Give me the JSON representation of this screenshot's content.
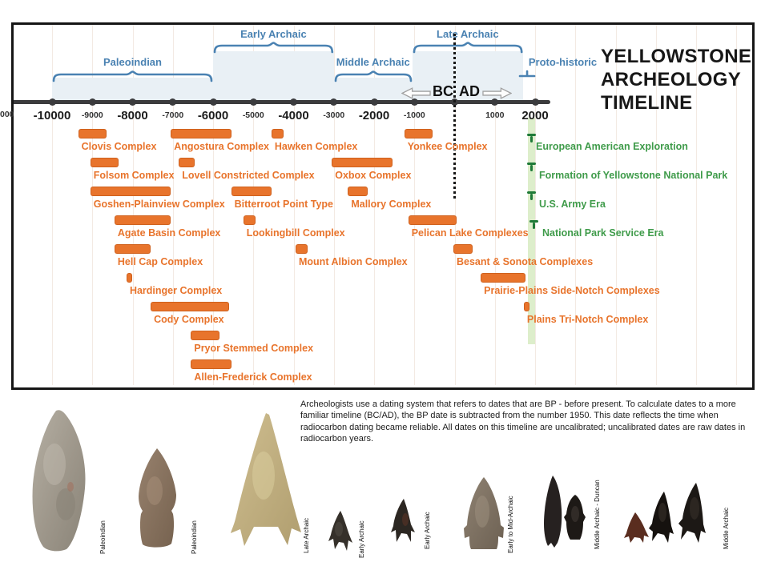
{
  "title": {
    "lines": [
      "YELLOWSTONE",
      "ARCHEOLOGY",
      "TIMELINE"
    ]
  },
  "chart_data": {
    "type": "timeline",
    "axis": {
      "min_year": -11000,
      "max_year": 2000,
      "tick_step": 1000,
      "bold_tick_labels": [
        -10000,
        -8000,
        -6000,
        -4000,
        -2000,
        2000
      ],
      "clipped_left_label": "000"
    },
    "bc_ad": {
      "bc": "BC",
      "ad": "AD",
      "boundary_year": 0
    },
    "periods": [
      {
        "label": "Paleoindian",
        "start": -10000,
        "end": -6000,
        "level": "lower"
      },
      {
        "label": "Early Archaic",
        "start": -6000,
        "end": -3000,
        "level": "upper"
      },
      {
        "label": "Middle Archaic",
        "start": -3000,
        "end": -1050,
        "level": "lower"
      },
      {
        "label": "Late Archaic",
        "start": -1050,
        "end": 1700,
        "level": "upper"
      },
      {
        "label": "Proto-historic",
        "start": 1600,
        "end": 2000,
        "level": "mini"
      }
    ],
    "complexes": [
      {
        "label": "Clovis Complex",
        "start": -9350,
        "end": -8650,
        "row": 1
      },
      {
        "label": "Angostura Complex",
        "start": -7050,
        "end": -5550,
        "row": 1
      },
      {
        "label": "Hawken Complex",
        "start": -4550,
        "end": -4250,
        "row": 1
      },
      {
        "label": "Yonkee Complex",
        "start": -1250,
        "end": -550,
        "row": 1
      },
      {
        "label": "Folsom Complex",
        "start": -9050,
        "end": -8350,
        "row": 2
      },
      {
        "label": "Lovell Constricted Complex",
        "start": -6850,
        "end": -6450,
        "row": 2
      },
      {
        "label": "Oxbox Complex",
        "start": -3050,
        "end": -1550,
        "row": 2
      },
      {
        "label": "Goshen-Plainview Complex",
        "start": -9050,
        "end": -7050,
        "row": 3
      },
      {
        "label": "Bitterroot Point Type",
        "start": -5550,
        "end": -4550,
        "row": 3
      },
      {
        "label": "Mallory Complex",
        "start": -2650,
        "end": -2150,
        "row": 3
      },
      {
        "label": "Agate Basin Complex",
        "start": -8450,
        "end": -7050,
        "row": 4
      },
      {
        "label": "Lookingbill Complex",
        "start": -5250,
        "end": -4950,
        "row": 4
      },
      {
        "label": "Pelican Lake Complexes",
        "start": -1150,
        "end": 50,
        "row": 4
      },
      {
        "label": "Hell Cap Complex",
        "start": -8450,
        "end": -7550,
        "row": 5
      },
      {
        "label": "Mount Albion Complex",
        "start": -3950,
        "end": -3650,
        "row": 5
      },
      {
        "label": "Besant & Sonota Complexes",
        "start": -30,
        "end": 450,
        "row": 5
      },
      {
        "label": "Hardinger Complex",
        "start": -8150,
        "end": -8000,
        "row": 6
      },
      {
        "label": "Prairie-Plains Side-Notch Complexes",
        "start": 650,
        "end": 1760,
        "row": 6
      },
      {
        "label": "Cody Complex",
        "start": -7550,
        "end": -5600,
        "row": 7
      },
      {
        "label": "Plains Tri-Notch Complex",
        "start": 1720,
        "end": 1860,
        "row": 7
      },
      {
        "label": "Pryor Stemmed Complex",
        "start": -6550,
        "end": -5850,
        "row": 8
      },
      {
        "label": "Allen-Frederick Complex",
        "start": -6550,
        "end": -5550,
        "row": 9
      }
    ],
    "historic_era_band": {
      "start": 1830,
      "end": 2000
    },
    "historic_events": [
      {
        "label": "European American Exploration",
        "row": 1
      },
      {
        "label": "Formation of Yellowstone National Park",
        "row": 2
      },
      {
        "label": "U.S. Army Era",
        "row": 3
      },
      {
        "label": "National Park Service Era",
        "row": 4
      }
    ]
  },
  "caption": "Archeologists use a dating system that refers to dates that are BP - before present. To calculate dates to a more familiar timeline (BC/AD), the BP date is subtracted from the number 1950. This date reflects the time when radiocarbon dating became reliable. All dates on this timeline are uncalibrated; uncalibrated dates are raw dates in radiocarbon years.",
  "artifacts": [
    {
      "label": "Paleoindian"
    },
    {
      "label": "Paleoindian"
    },
    {
      "label": "Late Archaic"
    },
    {
      "label": "Early Archaic"
    },
    {
      "label": "Early Archaic"
    },
    {
      "label": "Early to Mid-Archaic"
    },
    {
      "label": "Middle Archaic - Duncan"
    },
    {
      "label": "Middle Archaic"
    }
  ],
  "colors": {
    "complex_orange": "#E8742C",
    "period_blue": "#4A82B2",
    "period_shade": "#E9F0F5",
    "historic_green": "#3F9B4A",
    "historic_pin_green": "#1F7A38",
    "historic_band": "#DDEECB",
    "axis_dark": "#3B3B3D"
  }
}
